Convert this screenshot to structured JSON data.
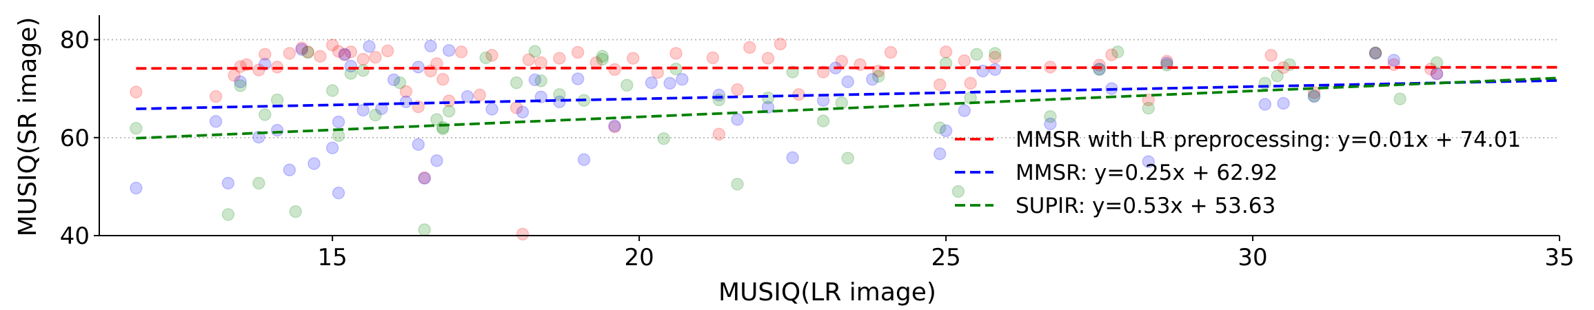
{
  "chart_data": {
    "type": "scatter",
    "xlabel": "MUSIQ(LR image)",
    "ylabel": "MUSIQ(SR image)",
    "xlim": [
      11.2,
      35
    ],
    "ylim": [
      40,
      85
    ],
    "xticks": [
      15,
      20,
      25,
      30,
      35
    ],
    "yticks": [
      40,
      60,
      80
    ],
    "grid": "horizontal dotted",
    "legend_placement": "lower-right",
    "series": [
      {
        "name": "MMSR with LR preprocessing",
        "color": "#ff0000",
        "fit": {
          "slope": 0.01,
          "intercept": 74.01,
          "label": "MMSR with LR preprocessing: y=0.01x + 74.01"
        },
        "points": [
          [
            11.8,
            69.3
          ],
          [
            13.1,
            68.4
          ],
          [
            13.4,
            72.7
          ],
          [
            13.5,
            74.5
          ],
          [
            13.6,
            74.9
          ],
          [
            13.8,
            73.8
          ],
          [
            13.9,
            77.0
          ],
          [
            14.1,
            74.4
          ],
          [
            14.3,
            77.2
          ],
          [
            14.5,
            78.3
          ],
          [
            14.6,
            77.5
          ],
          [
            14.8,
            76.6
          ],
          [
            15.0,
            78.9
          ],
          [
            15.1,
            77.6
          ],
          [
            15.2,
            76.9
          ],
          [
            15.3,
            77.5
          ],
          [
            15.5,
            76.0
          ],
          [
            15.7,
            76.4
          ],
          [
            15.9,
            77.7
          ],
          [
            16.2,
            69.4
          ],
          [
            16.4,
            66.3
          ],
          [
            16.6,
            73.6
          ],
          [
            16.7,
            75.1
          ],
          [
            16.8,
            71.9
          ],
          [
            16.9,
            67.5
          ],
          [
            17.1,
            77.5
          ],
          [
            17.4,
            68.7
          ],
          [
            17.6,
            76.8
          ],
          [
            18.0,
            66.1
          ],
          [
            18.2,
            75.9
          ],
          [
            18.4,
            75.3
          ],
          [
            18.7,
            76.2
          ],
          [
            19.0,
            77.4
          ],
          [
            19.3,
            75.3
          ],
          [
            19.6,
            73.9
          ],
          [
            19.9,
            76.2
          ],
          [
            20.3,
            73.3
          ],
          [
            20.6,
            77.2
          ],
          [
            21.2,
            76.3
          ],
          [
            21.3,
            60.7
          ],
          [
            21.6,
            69.8
          ],
          [
            21.8,
            78.4
          ],
          [
            22.1,
            76.2
          ],
          [
            22.3,
            79.1
          ],
          [
            22.6,
            68.8
          ],
          [
            23.0,
            73.4
          ],
          [
            23.3,
            75.6
          ],
          [
            23.6,
            74.9
          ],
          [
            23.9,
            73.6
          ],
          [
            24.1,
            77.4
          ],
          [
            24.9,
            70.8
          ],
          [
            25.0,
            77.5
          ],
          [
            25.3,
            75.7
          ],
          [
            25.4,
            71.1
          ],
          [
            25.8,
            76.4
          ],
          [
            26.7,
            74.4
          ],
          [
            27.5,
            74.8
          ],
          [
            27.7,
            76.9
          ],
          [
            28.3,
            67.7
          ],
          [
            28.6,
            75.6
          ],
          [
            30.3,
            76.8
          ],
          [
            30.5,
            74.3
          ],
          [
            31.0,
            69.2
          ],
          [
            32.0,
            77.3
          ],
          [
            32.3,
            74.9
          ],
          [
            32.9,
            74.0
          ],
          [
            33.0,
            73.1
          ],
          [
            18.1,
            40.3
          ],
          [
            16.5,
            51.8
          ],
          [
            19.6,
            62.2
          ]
        ]
      },
      {
        "name": "MMSR",
        "color": "#0000ff",
        "fit": {
          "slope": 0.25,
          "intercept": 62.92,
          "label": "MMSR: y=0.25x + 62.92"
        },
        "points": [
          [
            11.8,
            49.7
          ],
          [
            13.1,
            63.3
          ],
          [
            13.3,
            50.7
          ],
          [
            13.5,
            71.4
          ],
          [
            13.8,
            60.1
          ],
          [
            13.9,
            75.0
          ],
          [
            14.1,
            61.5
          ],
          [
            14.3,
            53.4
          ],
          [
            14.5,
            78.0
          ],
          [
            14.7,
            54.7
          ],
          [
            15.0,
            57.9
          ],
          [
            15.1,
            63.2
          ],
          [
            15.2,
            77.0
          ],
          [
            15.3,
            74.6
          ],
          [
            15.5,
            65.6
          ],
          [
            15.6,
            78.6
          ],
          [
            15.8,
            65.9
          ],
          [
            16.0,
            71.8
          ],
          [
            16.2,
            67.3
          ],
          [
            16.4,
            58.6
          ],
          [
            16.5,
            51.7
          ],
          [
            16.6,
            78.7
          ],
          [
            16.7,
            55.3
          ],
          [
            16.9,
            77.8
          ],
          [
            17.2,
            68.4
          ],
          [
            17.6,
            65.8
          ],
          [
            18.1,
            65.2
          ],
          [
            18.3,
            71.8
          ],
          [
            18.4,
            68.3
          ],
          [
            18.7,
            67.3
          ],
          [
            19.0,
            72.0
          ],
          [
            19.1,
            55.5
          ],
          [
            19.6,
            62.4
          ],
          [
            20.2,
            71.2
          ],
          [
            20.5,
            71.1
          ],
          [
            20.7,
            71.9
          ],
          [
            21.3,
            68.7
          ],
          [
            21.6,
            63.7
          ],
          [
            22.1,
            66.2
          ],
          [
            22.5,
            55.9
          ],
          [
            23.0,
            67.6
          ],
          [
            23.2,
            74.2
          ],
          [
            23.4,
            71.4
          ],
          [
            23.8,
            71.9
          ],
          [
            24.9,
            56.7
          ],
          [
            25.0,
            61.4
          ],
          [
            25.3,
            65.5
          ],
          [
            25.6,
            73.6
          ],
          [
            25.8,
            73.9
          ],
          [
            26.7,
            62.8
          ],
          [
            27.5,
            74.0
          ],
          [
            27.7,
            70.0
          ],
          [
            28.3,
            55.1
          ],
          [
            28.6,
            75.2
          ],
          [
            30.2,
            66.8
          ],
          [
            30.5,
            67.0
          ],
          [
            31.0,
            68.4
          ],
          [
            32.0,
            77.2
          ],
          [
            32.3,
            75.8
          ],
          [
            33.0,
            73.0
          ],
          [
            15.1,
            48.7
          ],
          [
            16.4,
            74.4
          ]
        ]
      },
      {
        "name": "SUPIR",
        "color": "#008000",
        "fit": {
          "slope": 0.53,
          "intercept": 53.63,
          "label": "SUPIR: y=0.53x + 53.63"
        },
        "points": [
          [
            11.8,
            61.9
          ],
          [
            13.3,
            44.3
          ],
          [
            13.5,
            70.6
          ],
          [
            13.8,
            50.7
          ],
          [
            13.9,
            64.7
          ],
          [
            14.1,
            67.7
          ],
          [
            14.4,
            44.9
          ],
          [
            14.6,
            77.4
          ],
          [
            15.0,
            69.6
          ],
          [
            15.1,
            60.4
          ],
          [
            15.3,
            73.1
          ],
          [
            15.5,
            73.7
          ],
          [
            15.7,
            64.6
          ],
          [
            16.1,
            71.2
          ],
          [
            16.5,
            41.2
          ],
          [
            16.7,
            63.7
          ],
          [
            16.8,
            62.1
          ],
          [
            16.9,
            65.4
          ],
          [
            17.5,
            76.3
          ],
          [
            18.0,
            71.2
          ],
          [
            18.3,
            77.6
          ],
          [
            18.4,
            71.6
          ],
          [
            18.7,
            68.8
          ],
          [
            19.1,
            67.6
          ],
          [
            19.4,
            76.6
          ],
          [
            19.8,
            70.7
          ],
          [
            20.4,
            59.8
          ],
          [
            20.6,
            74.0
          ],
          [
            21.3,
            67.7
          ],
          [
            21.6,
            50.5
          ],
          [
            22.1,
            68.1
          ],
          [
            22.5,
            73.4
          ],
          [
            23.0,
            63.4
          ],
          [
            23.3,
            67.1
          ],
          [
            23.4,
            55.8
          ],
          [
            23.9,
            72.5
          ],
          [
            24.9,
            62.0
          ],
          [
            25.0,
            75.2
          ],
          [
            25.2,
            49.0
          ],
          [
            25.4,
            68.1
          ],
          [
            25.5,
            77.0
          ],
          [
            25.8,
            77.2
          ],
          [
            26.7,
            64.3
          ],
          [
            27.5,
            73.9
          ],
          [
            27.8,
            77.5
          ],
          [
            28.3,
            66.0
          ],
          [
            28.6,
            74.8
          ],
          [
            30.2,
            71.1
          ],
          [
            30.4,
            72.6
          ],
          [
            30.6,
            74.9
          ],
          [
            31.0,
            68.5
          ],
          [
            32.0,
            77.3
          ],
          [
            32.4,
            67.9
          ],
          [
            33.0,
            75.3
          ],
          [
            16.8,
            61.8
          ],
          [
            19.4,
            76.0
          ]
        ]
      }
    ]
  }
}
